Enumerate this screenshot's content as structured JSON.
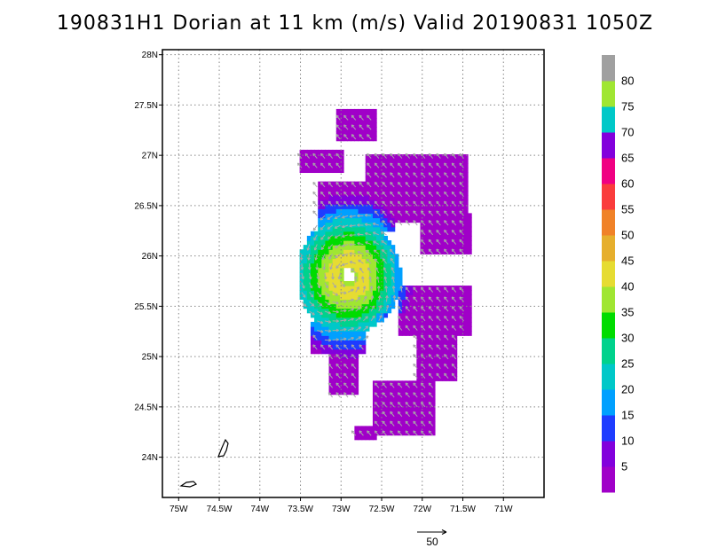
{
  "title": "190831H1 Dorian at 11 km (m/s) Valid 20190831  1050Z",
  "map": {
    "lon_range": [
      -75.2,
      -70.5
    ],
    "lat_range": [
      23.6,
      28.05
    ],
    "lon_ticks": [
      "75W",
      "74.5W",
      "74W",
      "73.5W",
      "73W",
      "72.5W",
      "72W",
      "71.5W",
      "71W"
    ],
    "lon_values": [
      -75,
      -74.5,
      -74,
      -73.5,
      -73,
      -72.5,
      -72,
      -71.5,
      -71
    ],
    "lat_ticks": [
      "24N",
      "24.5N",
      "25N",
      "25.5N",
      "26N",
      "26.5N",
      "27N",
      "27.5N",
      "28N"
    ],
    "lat_values": [
      24,
      24.5,
      25,
      25.5,
      26,
      26.5,
      27,
      27.5,
      28
    ],
    "grid": "dotted",
    "storm_center": {
      "lon": -72.93,
      "lat": 25.78
    }
  },
  "colorbar": {
    "labels": [
      "5",
      "10",
      "15",
      "20",
      "25",
      "30",
      "35",
      "40",
      "45",
      "50",
      "55",
      "60",
      "65",
      "70",
      "75",
      "80"
    ],
    "colors": [
      "#a000c8",
      "#8200dc",
      "#1e3cff",
      "#00a0ff",
      "#00c8c8",
      "#00d28c",
      "#00dc00",
      "#a0e632",
      "#e6dc32",
      "#e6af2d",
      "#f08228",
      "#fa3c3c",
      "#f00082",
      "#8200dc",
      "#00c8c8",
      "#a0e632",
      "#a0a0a0"
    ]
  },
  "scale_vector": {
    "label": "50"
  }
}
